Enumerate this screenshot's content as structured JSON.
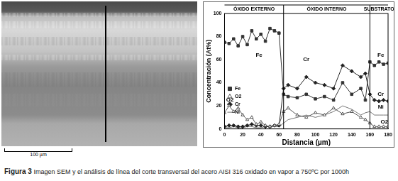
{
  "image": {
    "scale_bar": "100 µm"
  },
  "chart_data": {
    "type": "line",
    "x_label": "Distancia (µm)",
    "y_label": "Concentración (At%)",
    "xlim": [
      0,
      180
    ],
    "xticks": [
      0,
      20,
      40,
      60,
      80,
      100,
      120,
      140,
      160,
      180
    ],
    "ylim": [
      0,
      100
    ],
    "yticks": [
      0,
      20,
      40,
      60,
      80,
      100
    ],
    "grid": false,
    "legend": "top-right",
    "regions": [
      {
        "label": "ÓXIDO EXTERNO",
        "from": 0,
        "to": 65
      },
      {
        "label": "ÓXIDO INTERNO",
        "from": 65,
        "to": 160
      },
      {
        "label": "SUBSTRATO",
        "from": 160,
        "to": 180
      }
    ],
    "x": [
      0,
      5,
      10,
      15,
      20,
      25,
      30,
      35,
      40,
      45,
      50,
      55,
      60,
      65,
      70,
      80,
      90,
      100,
      110,
      120,
      130,
      140,
      150,
      155,
      160,
      165,
      170,
      175,
      180
    ],
    "series": [
      {
        "name": "Fe",
        "color": "#333333",
        "marker": "square",
        "values": [
          75,
          74,
          78,
          72,
          80,
          73,
          85,
          78,
          82,
          76,
          87,
          85,
          83,
          30,
          28,
          27,
          30,
          26,
          28,
          25,
          40,
          30,
          35,
          25,
          58,
          55,
          58,
          56,
          57
        ]
      },
      {
        "name": "O2",
        "color": "#555555",
        "marker": "triangle",
        "values": [
          14,
          20,
          15,
          18,
          12,
          8,
          10,
          4,
          6,
          3,
          2,
          3,
          4,
          15,
          18,
          12,
          10,
          14,
          12,
          18,
          13,
          15,
          10,
          8,
          5,
          2,
          2,
          2,
          2
        ]
      },
      {
        "name": "Cr",
        "color": "#222222",
        "marker": "diamond",
        "values": [
          2,
          3,
          3,
          2,
          2,
          3,
          4,
          3,
          3,
          2,
          2,
          3,
          3,
          35,
          38,
          35,
          45,
          40,
          38,
          35,
          55,
          50,
          45,
          48,
          30,
          25,
          24,
          25,
          24
        ]
      },
      {
        "name": "Ni",
        "color": "#777777",
        "marker": "none",
        "values": [
          1,
          1,
          2,
          1,
          1,
          2,
          2,
          1,
          1,
          2,
          2,
          2,
          2,
          5,
          8,
          10,
          12,
          10,
          12,
          15,
          20,
          17,
          12,
          14,
          15,
          12,
          12,
          12,
          12
        ]
      }
    ],
    "annotations": [
      {
        "text": "Fe",
        "x": 38,
        "y": 64
      },
      {
        "text": "O2",
        "x": 6,
        "y": 25
      },
      {
        "text": "Cr",
        "x": 90,
        "y": 60
      },
      {
        "text": "Cr",
        "x": 172,
        "y": 30
      },
      {
        "text": "Fe",
        "x": 172,
        "y": 64
      },
      {
        "text": "Ni",
        "x": 172,
        "y": 19
      },
      {
        "text": "O2",
        "x": 176,
        "y": 6
      }
    ]
  },
  "caption": {
    "label": "Figura 3",
    "text": "Imagen SEM y el análisis de línea del corte transversal del acero AISI 316 oxidado en vapor a 750ºC por 1000h"
  }
}
